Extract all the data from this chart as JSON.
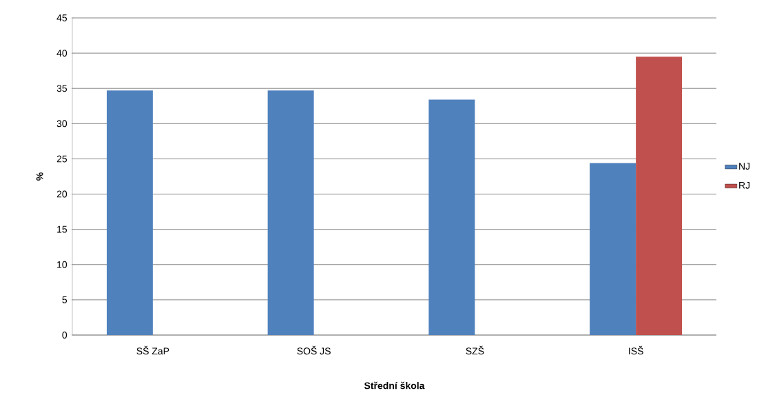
{
  "chart_data": {
    "type": "bar",
    "xlabel": "Střední škola",
    "ylabel": "%",
    "categories": [
      "SŠ ZaP",
      "SOŠ JS",
      "SZŠ",
      "ISŠ"
    ],
    "series": [
      {
        "name": "NJ",
        "color": "#4f81bd",
        "values": [
          34.7,
          34.7,
          33.4,
          24.4
        ]
      },
      {
        "name": "RJ",
        "color": "#c0504d",
        "values": [
          null,
          null,
          null,
          39.5
        ]
      }
    ],
    "ylim": [
      0,
      45
    ],
    "yticks": [
      0,
      5,
      10,
      15,
      20,
      25,
      30,
      35,
      40,
      45
    ],
    "grid": "y",
    "legend": "right"
  }
}
